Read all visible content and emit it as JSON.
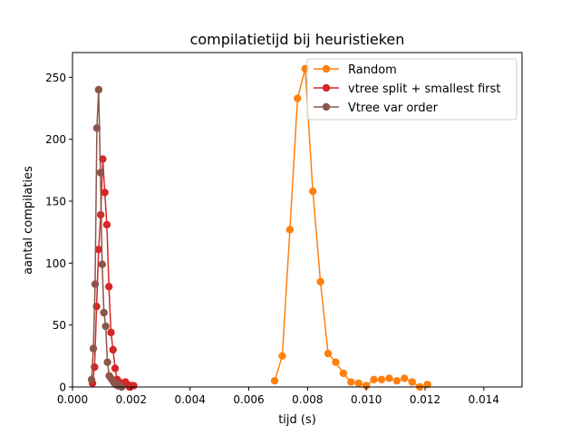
{
  "chart_data": {
    "type": "line",
    "title": "compilatietijd bij heuristieken",
    "xlabel": "tijd (s)",
    "ylabel": "aantal compilaties",
    "xlim": [
      0,
      0.0153
    ],
    "ylim": [
      0,
      270
    ],
    "xticks": [
      0.0,
      0.002,
      0.004,
      0.006,
      0.008,
      0.01,
      0.012,
      0.014
    ],
    "xtick_labels": [
      "0.000",
      "0.002",
      "0.004",
      "0.006",
      "0.008",
      "0.010",
      "0.012",
      "0.014"
    ],
    "yticks": [
      0,
      50,
      100,
      150,
      200,
      250
    ],
    "ytick_labels": [
      "0",
      "50",
      "100",
      "150",
      "200",
      "250"
    ],
    "grid": false,
    "legend_position": "top-right",
    "series": [
      {
        "name": "Random",
        "color": "#ff7f0e",
        "x": [
          0.00688,
          0.00714,
          0.0074,
          0.00766,
          0.00792,
          0.00818,
          0.00844,
          0.0087,
          0.00896,
          0.00922,
          0.00948,
          0.00974,
          0.01,
          0.01026,
          0.01052,
          0.01078,
          0.01104,
          0.0113,
          0.01156,
          0.01182,
          0.01208
        ],
        "y": [
          5,
          25,
          127,
          233,
          257,
          158,
          85,
          27,
          20,
          11,
          4,
          3,
          1,
          6,
          6,
          7,
          5,
          7,
          4,
          0,
          2
        ]
      },
      {
        "name": "vtree split + smallest first",
        "color": "#d62728",
        "x": [
          0.00068,
          0.00075,
          0.00082,
          0.00089,
          0.00096,
          0.00103,
          0.0011,
          0.00117,
          0.00124,
          0.00131,
          0.00138,
          0.00145,
          0.00152,
          0.00159,
          0.00166,
          0.00173,
          0.0018,
          0.00187,
          0.00194,
          0.00201,
          0.00208
        ],
        "y": [
          3,
          16,
          65,
          111,
          139,
          184,
          157,
          131,
          81,
          44,
          30,
          15,
          6,
          4,
          3,
          3,
          4,
          2,
          0,
          1,
          1
        ]
      },
      {
        "name": "Vtree var order",
        "color": "#8c564b",
        "x": [
          0.00065,
          0.00071,
          0.00077,
          0.00083,
          0.00089,
          0.00095,
          0.00101,
          0.00107,
          0.00113,
          0.00119,
          0.00125,
          0.00131,
          0.00137,
          0.00143,
          0.00149,
          0.00155,
          0.00161,
          0.00167
        ],
        "y": [
          6,
          31,
          83,
          209,
          240,
          173,
          99,
          60,
          49,
          20,
          9,
          7,
          5,
          3,
          2,
          1,
          1,
          0
        ]
      }
    ]
  }
}
